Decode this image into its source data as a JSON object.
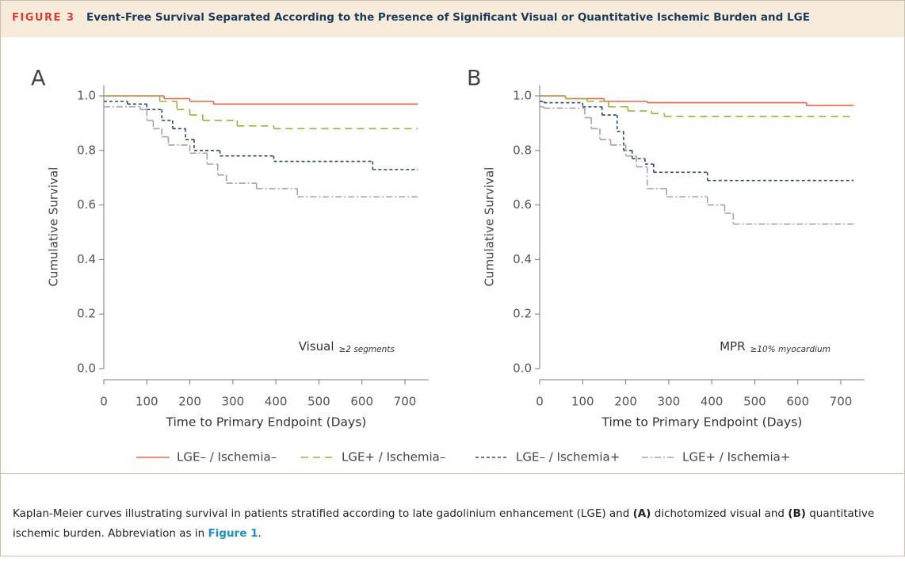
{
  "figure": {
    "label": "FIGURE 3",
    "title": "Event-Free Survival Separated According to the Presence of Significant Visual or Quantitative Ischemic Burden and LGE"
  },
  "caption": [
    "Kaplan-Meier curves illustrating survival in patients stratified according to late gadolinium enhancement (LGE) and ",
    "(A)",
    " dichotomized visual and ",
    "(B)",
    " quantitative ischemic burden. Abbreviation as in ",
    "Figure 1",
    "."
  ],
  "chart_data": [
    {
      "type": "line",
      "steps": true,
      "panel_label": "A",
      "annotation": {
        "text": "Visual",
        "subscript": "≥2 segments"
      },
      "xlabel": "Time to Primary Endpoint (Days)",
      "ylabel": "Cumulative Survival",
      "xlim": [
        0,
        755
      ],
      "ylim": [
        0,
        1.04
      ],
      "xticks": [
        0,
        100,
        200,
        300,
        400,
        500,
        600,
        700
      ],
      "yticks": [
        {
          "value": 0,
          "label": "0.0"
        },
        0.2,
        0.4,
        0.6,
        0.8,
        {
          "value": 1,
          "label": "1.0"
        }
      ],
      "series": [
        {
          "name": "LGE– / Ischemia–",
          "color": "#e8664f",
          "dash": "solid",
          "x": [
            0,
            140,
            200,
            255,
            730
          ],
          "values": [
            1.0,
            0.99,
            0.98,
            0.97,
            0.97
          ]
        },
        {
          "name": "LGE+ / Ischemia–",
          "color": "#8cb83e",
          "dash": "long-dash",
          "x": [
            0,
            130,
            170,
            200,
            230,
            310,
            395,
            730
          ],
          "values": [
            1.0,
            0.98,
            0.95,
            0.93,
            0.91,
            0.89,
            0.88,
            0.88
          ]
        },
        {
          "name": "LGE– / Ischemia+",
          "color": "#2d4b6c",
          "dash": "short-dash",
          "x": [
            0,
            55,
            100,
            135,
            160,
            190,
            210,
            270,
            395,
            625,
            730
          ],
          "values": [
            0.98,
            0.97,
            0.95,
            0.91,
            0.88,
            0.84,
            0.8,
            0.78,
            0.76,
            0.73,
            0.73
          ]
        },
        {
          "name": "LGE+ / Ischemia+",
          "color": "#a3a4a7",
          "dash": "dash-dot",
          "x": [
            0,
            85,
            100,
            115,
            135,
            150,
            200,
            240,
            265,
            285,
            355,
            450,
            730
          ],
          "values": [
            0.96,
            0.95,
            0.91,
            0.88,
            0.85,
            0.82,
            0.79,
            0.75,
            0.71,
            0.68,
            0.66,
            0.63,
            0.63
          ]
        }
      ]
    },
    {
      "type": "line",
      "steps": true,
      "panel_label": "B",
      "annotation": {
        "text": "MPR",
        "subscript": "≥10% myocardium"
      },
      "xlabel": "Time to Primary Endpoint (Days)",
      "ylabel": "Cumulative Survival",
      "xlim": [
        0,
        755
      ],
      "ylim": [
        0,
        1.04
      ],
      "xticks": [
        0,
        100,
        200,
        300,
        400,
        500,
        600,
        700
      ],
      "yticks": [
        {
          "value": 0,
          "label": "0.0"
        },
        0.2,
        0.4,
        0.6,
        0.8,
        {
          "value": 1,
          "label": "1.0"
        }
      ],
      "series": [
        {
          "color": "#e8664f",
          "dash": "solid",
          "x": [
            0,
            60,
            150,
            250,
            620,
            730
          ],
          "values": [
            1.0,
            0.99,
            0.98,
            0.975,
            0.965,
            0.965
          ]
        },
        {
          "color": "#8cb83e",
          "dash": "long-dash",
          "x": [
            0,
            60,
            110,
            160,
            205,
            260,
            290,
            730
          ],
          "values": [
            1.0,
            0.99,
            0.98,
            0.96,
            0.945,
            0.935,
            0.925,
            0.925
          ]
        },
        {
          "color": "#2d4b6c",
          "dash": "short-dash",
          "x": [
            0,
            10,
            100,
            145,
            180,
            195,
            215,
            245,
            265,
            390,
            730
          ],
          "values": [
            0.98,
            0.975,
            0.96,
            0.93,
            0.87,
            0.8,
            0.77,
            0.75,
            0.72,
            0.69,
            0.69
          ]
        },
        {
          "color": "#a3a4a7",
          "dash": "dash-dot",
          "x": [
            0,
            10,
            105,
            120,
            140,
            165,
            200,
            225,
            250,
            295,
            390,
            430,
            450,
            730
          ],
          "values": [
            0.96,
            0.955,
            0.92,
            0.88,
            0.84,
            0.82,
            0.78,
            0.74,
            0.66,
            0.63,
            0.6,
            0.57,
            0.53,
            0.53
          ]
        }
      ]
    }
  ]
}
